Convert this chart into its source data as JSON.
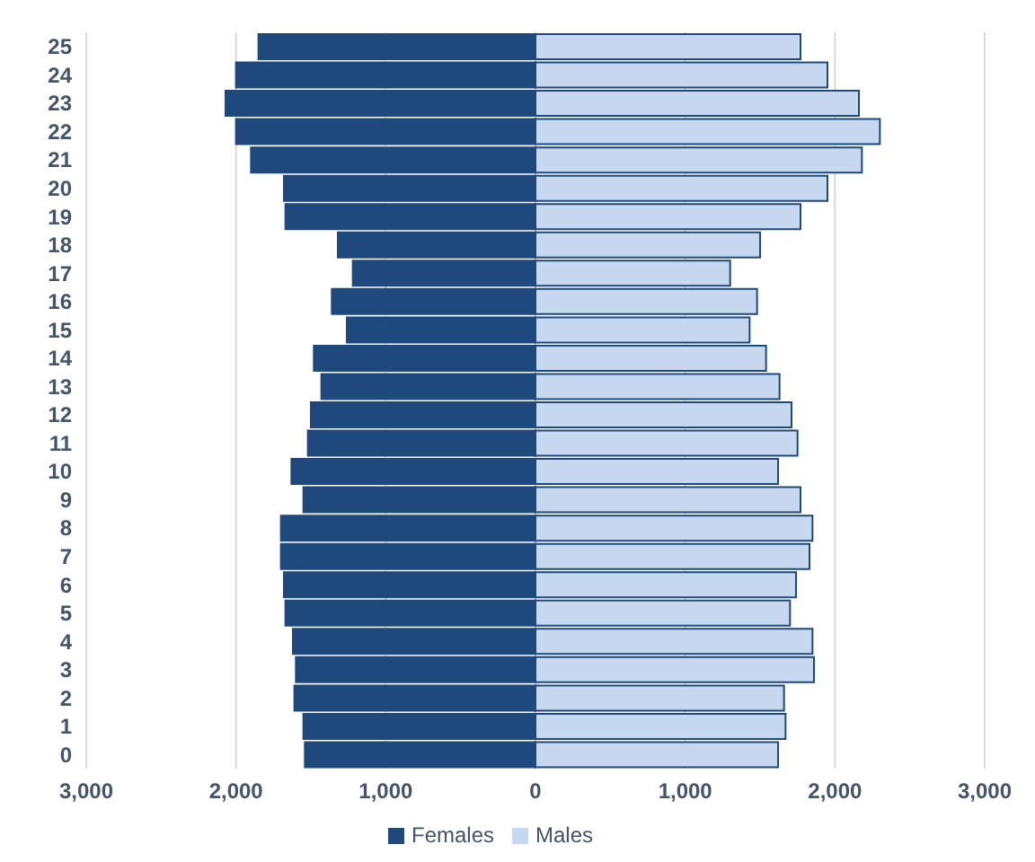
{
  "chart_data": {
    "type": "bar",
    "orientation": "horizontal",
    "stacked": true,
    "categories": [
      "25",
      "24",
      "23",
      "22",
      "21",
      "20",
      "19",
      "18",
      "17",
      "16",
      "15",
      "14",
      "13",
      "12",
      "11",
      "10",
      "9",
      "8",
      "7",
      "6",
      "5",
      "4",
      "3",
      "2",
      "1",
      "0"
    ],
    "series": [
      {
        "name": "Females",
        "color": "#1f497d",
        "values": [
          -1850,
          -2000,
          -2070,
          -2000,
          -1900,
          -1680,
          -1670,
          -1320,
          -1220,
          -1360,
          -1260,
          -1480,
          -1430,
          -1500,
          -1520,
          -1630,
          -1550,
          -1700,
          -1700,
          -1680,
          -1670,
          -1620,
          -1600,
          -1610,
          -1550,
          -1540
        ]
      },
      {
        "name": "Males",
        "color": "#c6d9f0",
        "values": [
          1770,
          1950,
          2160,
          2300,
          2180,
          1950,
          1770,
          1500,
          1300,
          1480,
          1430,
          1540,
          1630,
          1710,
          1750,
          1620,
          1770,
          1850,
          1830,
          1740,
          1700,
          1850,
          1860,
          1660,
          1670,
          1620
        ]
      }
    ],
    "xlim": [
      -3000,
      3000
    ],
    "xticks": [
      {
        "value": -3000,
        "label": "3,000"
      },
      {
        "value": -2000,
        "label": "2,000"
      },
      {
        "value": -1000,
        "label": "1,000"
      },
      0,
      {
        "value": 1000,
        "label": "1,000"
      },
      {
        "value": 2000,
        "label": "2,000"
      },
      {
        "value": 3000,
        "label": "3,000"
      }
    ],
    "grid": "x",
    "legend": "bottom"
  }
}
